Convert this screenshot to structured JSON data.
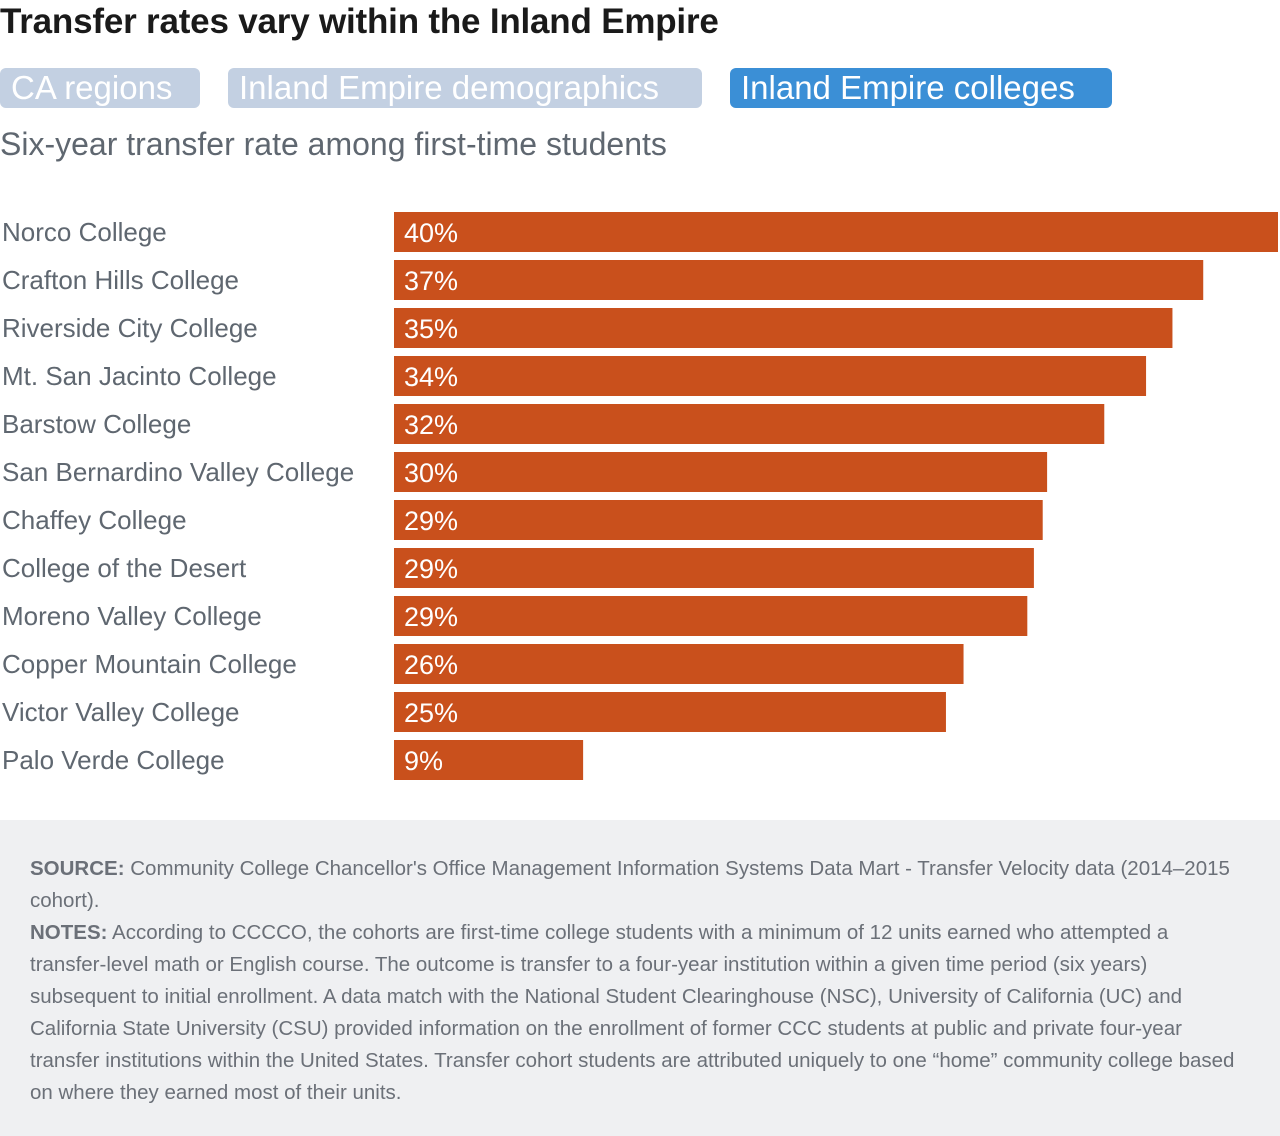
{
  "title": "Transfer rates vary within the Inland Empire",
  "tabs": [
    {
      "label": "CA regions",
      "active": false
    },
    {
      "label": "Inland Empire demographics",
      "active": false
    },
    {
      "label": "Inland Empire colleges",
      "active": true
    }
  ],
  "subtitle": "Six-year transfer rate among first-time students",
  "colors": {
    "bar": "#c9501c",
    "label": "#5f6770",
    "tab_active": "#3b8fd6",
    "tab_inactive": "#c3d0e2"
  },
  "chart_data": {
    "type": "bar",
    "orientation": "horizontal",
    "categories": [
      "Norco College",
      "Crafton Hills College",
      "Riverside City College",
      "Mt. San Jacinto College",
      "Barstow College",
      "San Bernardino Valley College",
      "Chaffey College",
      "College of the Desert",
      "Moreno Valley College",
      "Copper Mountain College",
      "Victor Valley College",
      "Palo Verde College"
    ],
    "values": [
      40.2,
      36.8,
      35.4,
      34.2,
      32.3,
      29.7,
      29.5,
      29.1,
      28.8,
      25.9,
      25.1,
      8.6
    ],
    "value_labels": [
      "40%",
      "37%",
      "35%",
      "34%",
      "32%",
      "30%",
      "29%",
      "29%",
      "29%",
      "26%",
      "25%",
      "9%"
    ],
    "xlim": [
      0,
      40.2
    ],
    "grid": false,
    "legend": "none"
  },
  "footer": {
    "source_label": "SOURCE:",
    "source_text": "Community College Chancellor's Office Management Information Systems Data Mart - Transfer Velocity data (2014–2015 cohort).",
    "notes_label": "NOTES:",
    "notes_text": "According to CCCCO, the cohorts are first-time college students with a minimum of 12 units earned who attempted a transfer-level math or English course. The outcome is transfer to a four-year institution within a given time period (six years) subsequent to initial enrollment. A data match with the National Student Clearinghouse (NSC), University of California (UC) and California State University (CSU) provided information on the enrollment of former CCC students at public and private four-year transfer institutions within the United States. Transfer cohort students are attributed uniquely to one “home” community college based on where they earned most of their units."
  }
}
